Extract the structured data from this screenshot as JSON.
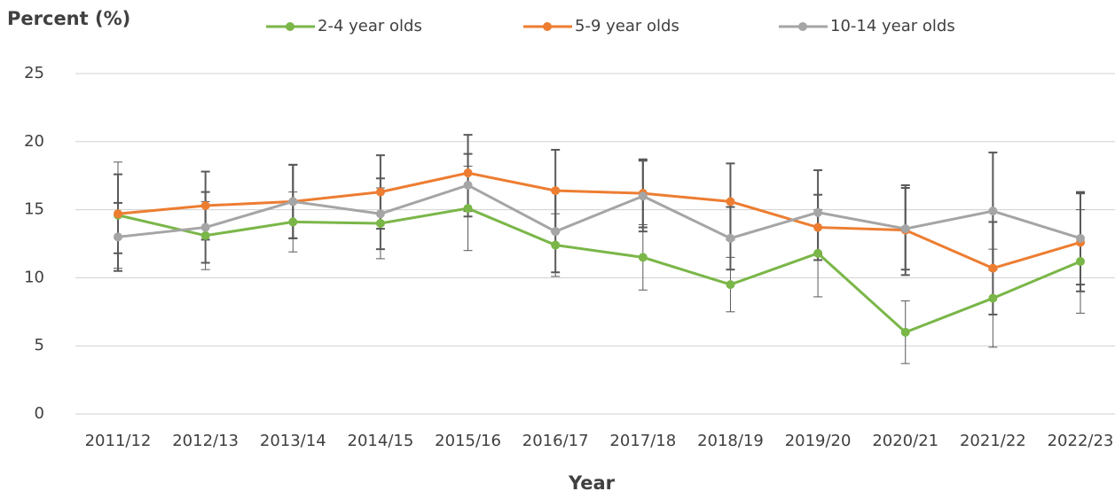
{
  "chart_data": {
    "type": "line",
    "y_title": "Percent (%)",
    "x_title": "Year",
    "categories": [
      "2011/12",
      "2012/13",
      "2013/14",
      "2014/15",
      "2015/16",
      "2016/17",
      "2017/18",
      "2018/19",
      "2019/20",
      "2020/21",
      "2021/22",
      "2022/23"
    ],
    "series": [
      {
        "name": "2-4 year olds",
        "color": "#7ab648",
        "values": [
          14.6,
          13.1,
          14.1,
          14.0,
          15.1,
          12.4,
          11.5,
          9.5,
          11.8,
          6.0,
          8.5,
          11.2
        ],
        "errors": [
          3.9,
          2.5,
          2.2,
          2.6,
          3.1,
          2.3,
          2.4,
          2.0,
          3.2,
          2.3,
          3.6,
          3.8
        ]
      },
      {
        "name": "5-9 year olds",
        "color": "#ed7d31",
        "values": [
          14.7,
          15.3,
          15.6,
          16.3,
          17.7,
          16.4,
          16.2,
          15.6,
          13.7,
          13.5,
          10.7,
          12.6
        ],
        "errors": [
          2.9,
          2.5,
          2.7,
          2.7,
          2.8,
          3.0,
          2.5,
          2.8,
          2.4,
          3.3,
          3.4,
          3.6
        ]
      },
      {
        "name": "10-14 year olds",
        "color": "#a5a5a5",
        "values": [
          13.0,
          13.7,
          15.6,
          14.7,
          16.8,
          13.4,
          16.0,
          12.9,
          14.8,
          13.6,
          14.9,
          12.9
        ],
        "errors": [
          2.5,
          2.6,
          2.7,
          2.6,
          2.3,
          3.0,
          2.6,
          2.3,
          3.1,
          3.0,
          4.3,
          3.4
        ]
      }
    ],
    "ylim": [
      0,
      25
    ],
    "yticks": [
      0,
      5,
      10,
      15,
      20,
      25
    ],
    "grid": true
  }
}
